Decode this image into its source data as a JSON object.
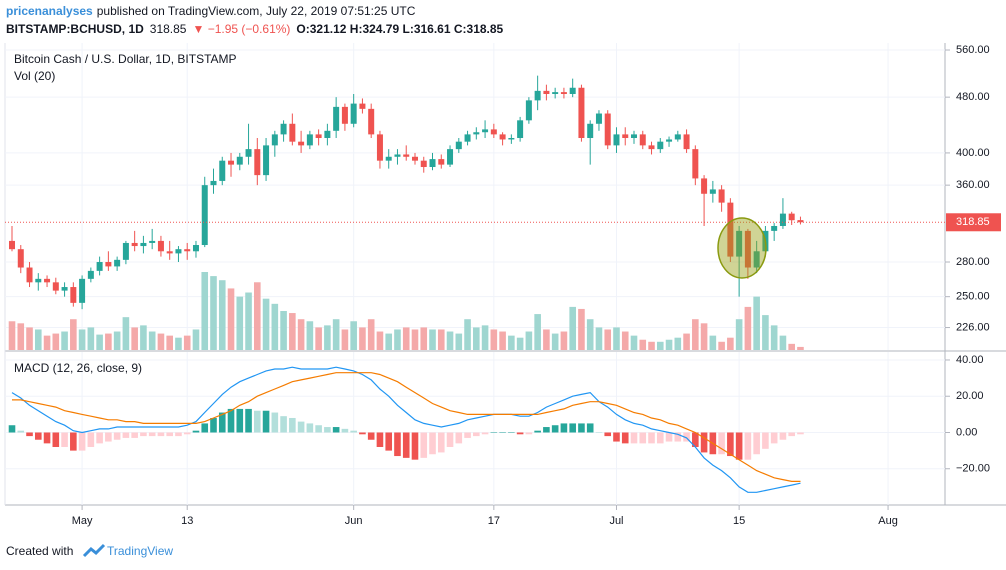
{
  "header": {
    "publisher": "pricenanalyses",
    "published": "published on TradingView.com, July 22, 2019 07:51:25 UTC",
    "symbol": "BITSTAMP:BCHUSD, 1D",
    "price": "318.85",
    "change": "▼ −1.95 (−0.61%)",
    "ohlc": "O:321.12 H:324.79 L:316.61 C:318.85"
  },
  "footer": {
    "created": "Created with",
    "brand": "TradingView"
  },
  "chart_data": [
    {
      "type": "candlestick",
      "title": "Bitcoin Cash / U.S. Dollar, 1D, BITSTAMP",
      "log_scale": true,
      "grid": true,
      "up_color": "#26a69a",
      "down_color": "#ef5350",
      "ylim": [
        210,
        573
      ],
      "yticks": [
        {
          "value": 560,
          "label": "560.00"
        },
        {
          "value": 480,
          "label": "480.00"
        },
        {
          "value": 400,
          "label": "400.00"
        },
        {
          "value": 360,
          "label": "360.00"
        },
        {
          "value": 280,
          "label": "280.00"
        },
        {
          "value": 250,
          "label": "250.00"
        },
        {
          "value": 226,
          "label": "226.00"
        }
      ],
      "last_price": 318.85,
      "ohlc": [
        [
          300,
          315,
          290,
          292
        ],
        [
          292,
          296,
          270,
          275
        ],
        [
          275,
          280,
          258,
          262
        ],
        [
          262,
          270,
          255,
          265
        ],
        [
          265,
          268,
          258,
          262
        ],
        [
          262,
          266,
          252,
          255
        ],
        [
          255,
          262,
          250,
          258
        ],
        [
          258,
          262,
          242,
          245
        ],
        [
          245,
          268,
          240,
          265
        ],
        [
          265,
          275,
          262,
          272
        ],
        [
          272,
          285,
          268,
          280
        ],
        [
          280,
          290,
          272,
          276
        ],
        [
          276,
          285,
          272,
          282
        ],
        [
          282,
          300,
          278,
          298
        ],
        [
          298,
          310,
          290,
          295
        ],
        [
          295,
          305,
          288,
          298
        ],
        [
          298,
          312,
          292,
          300
        ],
        [
          300,
          305,
          285,
          290
        ],
        [
          290,
          300,
          282,
          288
        ],
        [
          288,
          295,
          280,
          292
        ],
        [
          292,
          298,
          282,
          290
        ],
        [
          290,
          300,
          284,
          296
        ],
        [
          296,
          370,
          294,
          360
        ],
        [
          360,
          380,
          350,
          365
        ],
        [
          365,
          395,
          360,
          390
        ],
        [
          390,
          400,
          370,
          385
        ],
        [
          385,
          400,
          378,
          395
        ],
        [
          395,
          440,
          385,
          405
        ],
        [
          405,
          420,
          360,
          372
        ],
        [
          372,
          420,
          365,
          410
        ],
        [
          410,
          430,
          395,
          425
        ],
        [
          425,
          445,
          415,
          440
        ],
        [
          440,
          455,
          410,
          415
        ],
        [
          415,
          430,
          400,
          410
        ],
        [
          410,
          430,
          405,
          425
        ],
        [
          425,
          432,
          410,
          420
        ],
        [
          420,
          440,
          410,
          430
        ],
        [
          430,
          480,
          420,
          465
        ],
        [
          465,
          470,
          430,
          440
        ],
        [
          440,
          485,
          435,
          470
        ],
        [
          470,
          478,
          455,
          462
        ],
        [
          462,
          470,
          420,
          425
        ],
        [
          425,
          430,
          380,
          390
        ],
        [
          390,
          405,
          380,
          395
        ],
        [
          395,
          405,
          385,
          398
        ],
        [
          398,
          410,
          390,
          395
        ],
        [
          395,
          400,
          385,
          390
        ],
        [
          390,
          395,
          375,
          382
        ],
        [
          382,
          400,
          378,
          392
        ],
        [
          392,
          398,
          380,
          385
        ],
        [
          385,
          410,
          382,
          405
        ],
        [
          405,
          420,
          400,
          415
        ],
        [
          415,
          430,
          410,
          425
        ],
        [
          425,
          435,
          418,
          428
        ],
        [
          428,
          445,
          420,
          432
        ],
        [
          432,
          440,
          420,
          425
        ],
        [
          425,
          428,
          410,
          418
        ],
        [
          418,
          425,
          412,
          420
        ],
        [
          420,
          450,
          415,
          445
        ],
        [
          445,
          480,
          440,
          475
        ],
        [
          475,
          515,
          460,
          490
        ],
        [
          490,
          500,
          475,
          485
        ],
        [
          485,
          495,
          478,
          488
        ],
        [
          488,
          495,
          478,
          485
        ],
        [
          485,
          510,
          480,
          495
        ],
        [
          495,
          500,
          415,
          420
        ],
        [
          420,
          445,
          385,
          440
        ],
        [
          440,
          460,
          430,
          455
        ],
        [
          455,
          460,
          405,
          410
        ],
        [
          410,
          435,
          400,
          425
        ],
        [
          425,
          435,
          410,
          420
        ],
        [
          420,
          430,
          412,
          425
        ],
        [
          425,
          430,
          405,
          410
        ],
        [
          410,
          415,
          398,
          405
        ],
        [
          405,
          420,
          400,
          415
        ],
        [
          415,
          422,
          408,
          418
        ],
        [
          418,
          430,
          415,
          425
        ],
        [
          425,
          432,
          400,
          405
        ],
        [
          405,
          410,
          360,
          368
        ],
        [
          368,
          372,
          315,
          350
        ],
        [
          350,
          365,
          340,
          355
        ],
        [
          355,
          360,
          330,
          340
        ],
        [
          340,
          345,
          280,
          285
        ],
        [
          285,
          315,
          250,
          310
        ],
        [
          310,
          312,
          265,
          275
        ],
        [
          275,
          300,
          270,
          290
        ],
        [
          290,
          315,
          285,
          310
        ],
        [
          310,
          318,
          300,
          315
        ],
        [
          315,
          345,
          312,
          328
        ],
        [
          328,
          330,
          316,
          321
        ],
        [
          321.12,
          324.79,
          316.61,
          318.85
        ]
      ],
      "volume": {
        "label": "Vol (20)",
        "up_color": "#9fd6d0",
        "down_color": "#f4a9a9",
        "values": [
          28,
          26,
          22,
          20,
          14,
          16,
          18,
          30,
          20,
          22,
          15,
          16,
          18,
          32,
          22,
          24,
          18,
          16,
          14,
          12,
          14,
          20,
          76,
          72,
          68,
          60,
          52,
          56,
          66,
          50,
          45,
          38,
          36,
          30,
          28,
          22,
          24,
          30,
          20,
          28,
          22,
          30,
          18,
          16,
          20,
          22,
          20,
          22,
          20,
          20,
          18,
          16,
          30,
          22,
          24,
          20,
          18,
          14,
          12,
          18,
          35,
          20,
          16,
          18,
          42,
          40,
          30,
          22,
          20,
          22,
          18,
          14,
          10,
          8,
          8,
          10,
          12,
          16,
          30,
          26,
          14,
          8,
          12,
          30,
          42,
          52,
          34,
          24,
          14,
          6,
          3
        ]
      }
    },
    {
      "type": "line",
      "title": "MACD (12, 26, close, 9)",
      "grid": true,
      "ylim": [
        -40,
        44.4
      ],
      "yticks": [
        {
          "value": 40,
          "label": "40.00"
        },
        {
          "value": 20,
          "label": "20.00"
        },
        {
          "value": 0,
          "label": "0.00"
        },
        {
          "value": -20,
          "label": "−20.00"
        }
      ],
      "xlim": [
        -0.8,
        106.5
      ],
      "xticks": [
        {
          "value": 8,
          "label": "May"
        },
        {
          "value": 20,
          "label": "13"
        },
        {
          "value": 39,
          "label": "Jun"
        },
        {
          "value": 55,
          "label": "17"
        },
        {
          "value": 69,
          "label": "Jul"
        },
        {
          "value": 83,
          "label": "15"
        },
        {
          "value": 100,
          "label": "Aug"
        }
      ],
      "series": [
        {
          "type": "bar",
          "colors": {
            "rising_above": "#26a69a",
            "falling_above": "#b2dfdb",
            "rising_below": "#ffcdd2",
            "falling_below": "#ef5350"
          },
          "values": [
            4,
            1,
            -2,
            -4,
            -6,
            -8,
            -8,
            -10,
            -10,
            -8,
            -6,
            -5,
            -4,
            -3,
            -3,
            -2,
            -2,
            -2,
            -2,
            -2,
            -1,
            1,
            5,
            8,
            11,
            13,
            13,
            13,
            12,
            12,
            11,
            9,
            8,
            6,
            5,
            4,
            3,
            3,
            2,
            1,
            -1,
            -4,
            -8,
            -10,
            -13,
            -14,
            -15,
            -14,
            -12,
            -11,
            -8,
            -6,
            -3,
            -2,
            -1,
            0,
            0,
            0,
            -1,
            -1,
            1,
            3,
            4,
            5,
            5,
            5,
            5,
            0,
            -2,
            -5,
            -6,
            -6,
            -6,
            -6,
            -6,
            -5,
            -5,
            -5,
            -8,
            -11,
            -12,
            -12,
            -13,
            -15,
            -15,
            -12,
            -9,
            -6,
            -4,
            -2,
            -1
          ]
        },
        {
          "type": "line",
          "color": "#2196f3",
          "values": [
            22,
            19,
            15,
            12,
            9,
            6,
            4,
            1,
            0,
            1,
            2,
            2,
            3,
            3,
            3,
            3,
            3,
            3,
            3,
            3,
            4,
            6,
            11,
            16,
            21,
            25,
            28,
            30,
            32,
            34,
            35,
            35,
            36,
            35,
            35,
            35,
            35,
            36,
            35,
            34,
            32,
            29,
            24,
            20,
            15,
            11,
            7,
            5,
            4,
            3,
            4,
            5,
            7,
            8,
            9,
            10,
            10,
            10,
            9,
            9,
            11,
            14,
            16,
            18,
            20,
            21,
            22,
            17,
            14,
            10,
            7,
            5,
            4,
            2,
            1,
            0,
            -1,
            -3,
            -8,
            -14,
            -18,
            -21,
            -25,
            -30,
            -33,
            -33,
            -32,
            -31,
            -30,
            -29,
            -28
          ]
        },
        {
          "type": "line",
          "color": "#f57c00",
          "values": [
            18,
            18,
            17,
            16,
            15,
            14,
            12,
            11,
            10,
            9,
            8,
            7,
            7,
            6,
            6,
            5,
            5,
            5,
            5,
            5,
            5,
            5,
            6,
            8,
            10,
            12,
            15,
            17,
            20,
            22,
            24,
            26,
            28,
            29,
            30,
            31,
            32,
            33,
            33,
            33,
            33,
            33,
            32,
            30,
            28,
            25,
            22,
            19,
            16,
            14,
            12,
            11,
            10,
            10,
            10,
            10,
            10,
            10,
            10,
            10,
            10,
            11,
            12,
            13,
            15,
            16,
            17,
            17,
            16,
            15,
            13,
            11,
            10,
            8,
            7,
            5,
            4,
            2,
            0,
            -3,
            -6,
            -9,
            -12,
            -15,
            -18,
            -21,
            -23,
            -25,
            -26,
            -27,
            -27
          ]
        }
      ]
    }
  ]
}
